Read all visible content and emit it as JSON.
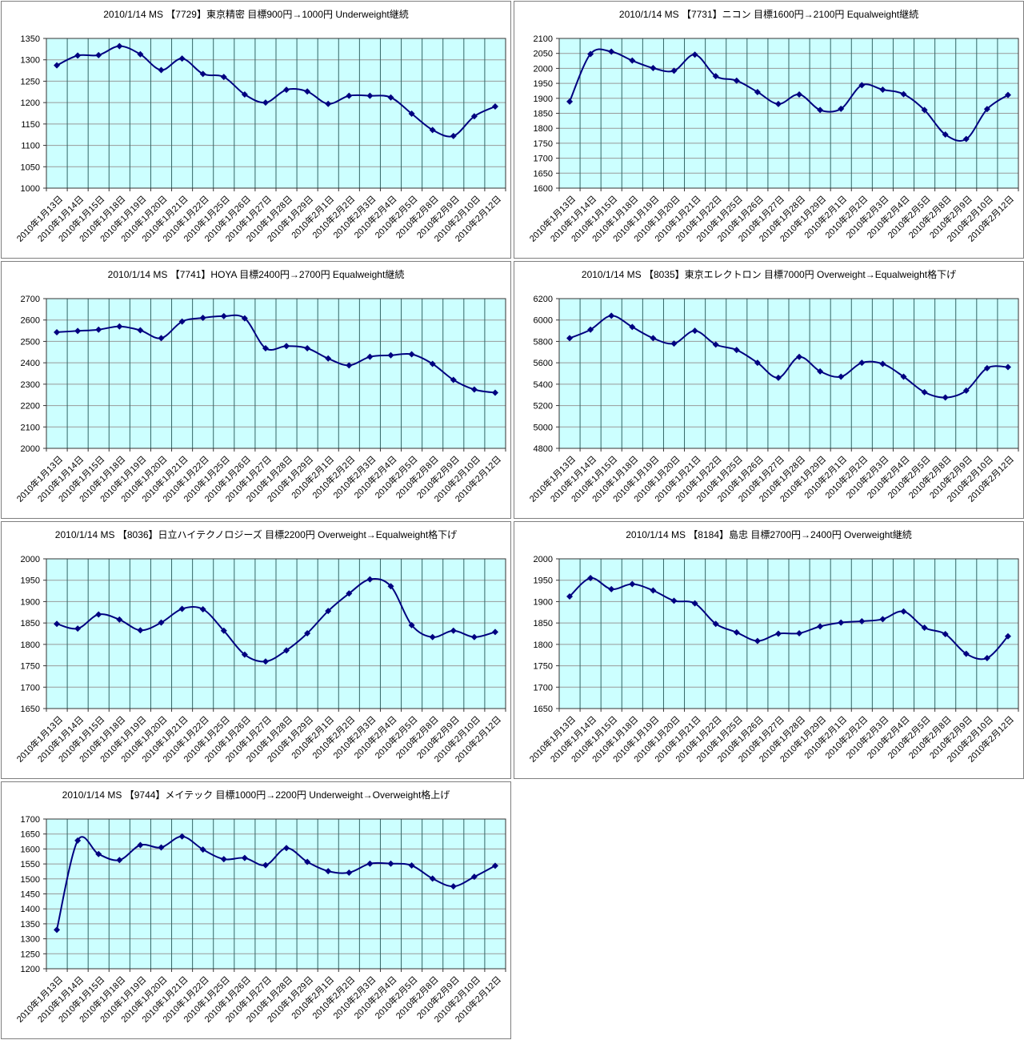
{
  "colors": {
    "page_bg": "#ffffff",
    "panel_border": "#7f7f7f",
    "plot_bg": "#ccffff",
    "grid_vertical": "#336666",
    "grid_horizontal": "#999999",
    "axis": "#333333",
    "line": "#000080",
    "marker": "#000080",
    "text": "#000000"
  },
  "chart_data": {
    "type": "line",
    "legend_position": "none",
    "grid": "on",
    "marker_shape": "diamond",
    "categories": [
      "2010年1月13日",
      "2010年1月14日",
      "2010年1月15日",
      "2010年1月18日",
      "2010年1月19日",
      "2010年1月20日",
      "2010年1月21日",
      "2010年1月22日",
      "2010年1月25日",
      "2010年1月26日",
      "2010年1月27日",
      "2010年1月28日",
      "2010年1月29日",
      "2010年2月1日",
      "2010年2月2日",
      "2010年2月3日",
      "2010年2月4日",
      "2010年2月5日",
      "2010年2月8日",
      "2010年2月9日",
      "2010年2月10日",
      "2010年2月12日"
    ],
    "charts": [
      {
        "title": "2010/1/14 MS 【7729】東京精密 目標900円→1000円 Underweight継続",
        "ylim": [
          1000,
          1350
        ],
        "ytick": 50,
        "values": [
          1287,
          1310,
          1311,
          1332,
          1313,
          1276,
          1303,
          1267,
          1260,
          1219,
          1200,
          1230,
          1226,
          1197,
          1216,
          1216,
          1212,
          1174,
          1136,
          1122,
          1168,
          1191
        ]
      },
      {
        "title": "2010/1/14 MS 【7731】ニコン 目標1600円→2100円 Equalweight継続",
        "ylim": [
          1600,
          2100
        ],
        "ytick": 50,
        "values": [
          1889,
          2048,
          2056,
          2026,
          2001,
          1992,
          2046,
          1974,
          1959,
          1921,
          1881,
          1913,
          1861,
          1865,
          1944,
          1929,
          1914,
          1861,
          1779,
          1764,
          1864,
          1911
        ]
      },
      {
        "title": "2010/1/14 MS 【7741】HOYA 目標2400円→2700円 Equalweight継続",
        "ylim": [
          2000,
          2700
        ],
        "ytick": 100,
        "values": [
          2543,
          2549,
          2555,
          2570,
          2552,
          2515,
          2593,
          2610,
          2618,
          2608,
          2468,
          2478,
          2468,
          2420,
          2388,
          2428,
          2435,
          2440,
          2395,
          2320,
          2275,
          2260
        ]
      },
      {
        "title": "2010/1/14 MS 【8035】東京エレクトロン 目標7000円 Overweight→Equalweight格下げ",
        "ylim": [
          4800,
          6200
        ],
        "ytick": 200,
        "values": [
          5830,
          5910,
          6040,
          5935,
          5830,
          5780,
          5900,
          5770,
          5720,
          5600,
          5460,
          5655,
          5520,
          5470,
          5600,
          5590,
          5470,
          5325,
          5275,
          5340,
          5550,
          5560
        ]
      },
      {
        "title": "2010/1/14 MS 【8036】日立ハイテクノロジーズ 目標2200円 Overweight→Equalweight格下げ",
        "ylim": [
          1650,
          2000
        ],
        "ytick": 50,
        "values": [
          1848,
          1837,
          1870,
          1858,
          1833,
          1851,
          1883,
          1882,
          1832,
          1776,
          1760,
          1786,
          1826,
          1878,
          1919,
          1952,
          1936,
          1845,
          1817,
          1832,
          1817,
          1829
        ]
      },
      {
        "title": "2010/1/14 MS 【8184】島忠 目標2700円→2400円 Overweight継続",
        "ylim": [
          1650,
          2000
        ],
        "ytick": 50,
        "values": [
          1912,
          1955,
          1929,
          1941,
          1926,
          1902,
          1896,
          1848,
          1828,
          1808,
          1825,
          1826,
          1842,
          1851,
          1854,
          1859,
          1877,
          1839,
          1824,
          1778,
          1768,
          1819
        ]
      },
      {
        "title": "2010/1/14 MS 【9744】メイテック 目標1000円→2200円 Underweight→Overweight格上げ",
        "ylim": [
          1200,
          1700
        ],
        "ytick": 50,
        "values": [
          1330,
          1628,
          1583,
          1563,
          1613,
          1605,
          1642,
          1598,
          1566,
          1570,
          1546,
          1603,
          1557,
          1526,
          1521,
          1551,
          1551,
          1545,
          1501,
          1475,
          1507,
          1544
        ]
      }
    ]
  }
}
